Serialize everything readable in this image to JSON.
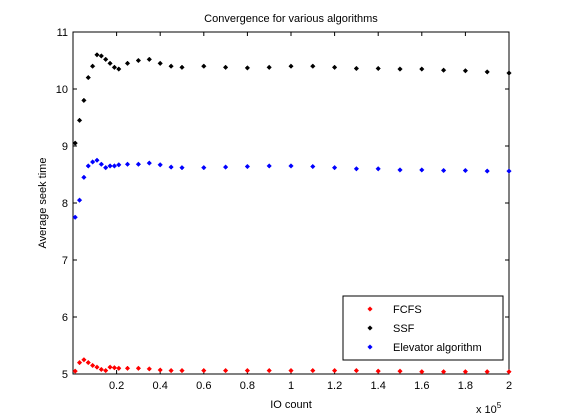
{
  "chart_data": {
    "type": "scatter",
    "title": "Convergence for various algorithms",
    "xlabel": "IO count",
    "ylabel": "Average seek time",
    "x_scale_note": "x 10",
    "x_scale_exp": "5",
    "xlim": [
      0,
      200000
    ],
    "ylim": [
      5,
      11
    ],
    "xticks": [
      20000,
      40000,
      60000,
      80000,
      100000,
      120000,
      140000,
      160000,
      180000,
      200000
    ],
    "xtick_labels": [
      "0.2",
      "0.4",
      "0.6",
      "0.8",
      "1",
      "1.2",
      "1.4",
      "1.6",
      "1.8",
      "2"
    ],
    "yticks": [
      5,
      6,
      7,
      8,
      9,
      10,
      11
    ],
    "ytick_labels": [
      "5",
      "6",
      "7",
      "8",
      "9",
      "10",
      "11"
    ],
    "grid": false,
    "legend_position": "bottom-right",
    "series": [
      {
        "name": "FCFS",
        "color": "#ff0000",
        "marker": "diamond",
        "x": [
          1000,
          3000,
          5000,
          7000,
          9000,
          11000,
          13000,
          15000,
          17000,
          19000,
          21000,
          25000,
          30000,
          35000,
          40000,
          45000,
          50000,
          60000,
          70000,
          80000,
          90000,
          100000,
          110000,
          120000,
          130000,
          140000,
          150000,
          160000,
          170000,
          180000,
          190000,
          200000
        ],
        "y": [
          5.05,
          5.2,
          5.25,
          5.2,
          5.15,
          5.12,
          5.08,
          5.06,
          5.12,
          5.11,
          5.1,
          5.1,
          5.1,
          5.09,
          5.07,
          5.06,
          5.06,
          5.06,
          5.06,
          5.06,
          5.06,
          5.06,
          5.06,
          5.06,
          5.06,
          5.05,
          5.05,
          5.04,
          5.04,
          5.04,
          5.04,
          5.04
        ]
      },
      {
        "name": "SSF",
        "color": "#000000",
        "marker": "diamond",
        "x": [
          1000,
          3000,
          5000,
          7000,
          9000,
          11000,
          13000,
          15000,
          17000,
          19000,
          21000,
          25000,
          30000,
          35000,
          40000,
          45000,
          50000,
          60000,
          70000,
          80000,
          90000,
          100000,
          110000,
          120000,
          130000,
          140000,
          150000,
          160000,
          170000,
          180000,
          190000,
          200000
        ],
        "y": [
          9.05,
          9.45,
          9.8,
          10.2,
          10.4,
          10.6,
          10.58,
          10.52,
          10.45,
          10.38,
          10.35,
          10.45,
          10.5,
          10.52,
          10.45,
          10.4,
          10.38,
          10.4,
          10.38,
          10.37,
          10.38,
          10.4,
          10.4,
          10.38,
          10.36,
          10.36,
          10.35,
          10.35,
          10.33,
          10.32,
          10.3,
          10.28
        ]
      },
      {
        "name": "Elevator algorithm",
        "color": "#0000ff",
        "marker": "diamond",
        "x": [
          1000,
          3000,
          5000,
          7000,
          9000,
          11000,
          13000,
          15000,
          17000,
          19000,
          21000,
          25000,
          30000,
          35000,
          40000,
          45000,
          50000,
          60000,
          70000,
          80000,
          90000,
          100000,
          110000,
          120000,
          130000,
          140000,
          150000,
          160000,
          170000,
          180000,
          190000,
          200000
        ],
        "y": [
          7.75,
          8.05,
          8.45,
          8.65,
          8.72,
          8.75,
          8.68,
          8.62,
          8.65,
          8.65,
          8.67,
          8.68,
          8.68,
          8.7,
          8.67,
          8.63,
          8.62,
          8.62,
          8.63,
          8.64,
          8.65,
          8.65,
          8.64,
          8.62,
          8.6,
          8.6,
          8.58,
          8.58,
          8.57,
          8.57,
          8.56,
          8.56
        ]
      }
    ]
  }
}
